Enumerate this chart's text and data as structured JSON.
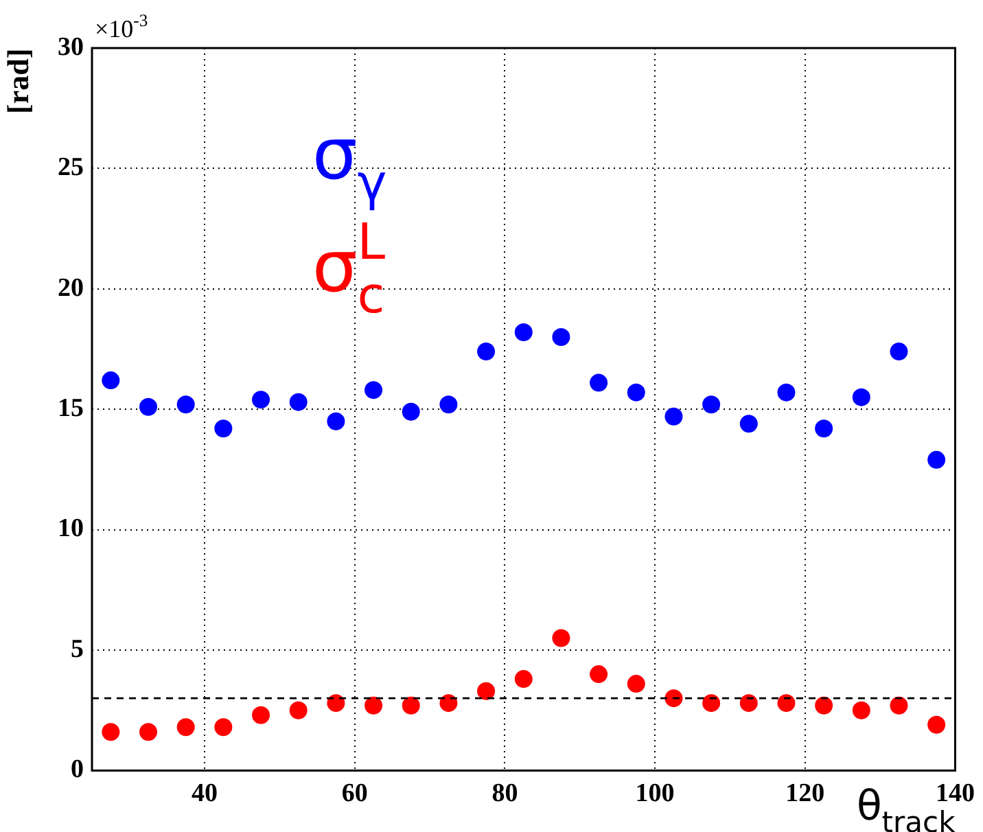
{
  "chart_data": {
    "type": "scatter",
    "xlabel": "θ$_{track}$",
    "ylabel": "[rad]",
    "annotations": [
      "×10$^{-3}$"
    ],
    "x": [
      27.5,
      32.5,
      37.5,
      42.5,
      47.5,
      52.5,
      57.5,
      62.5,
      67.5,
      72.5,
      77.5,
      82.5,
      87.5,
      92.5,
      97.5,
      102.5,
      107.5,
      112.5,
      117.5,
      122.5,
      127.5,
      132.5,
      137.5
    ],
    "series": [
      {
        "name": "σ$_{γ}$",
        "color": "#0000ff",
        "values": [
          16.2,
          15.1,
          15.2,
          14.2,
          15.4,
          15.3,
          14.5,
          15.8,
          14.9,
          15.2,
          17.4,
          18.2,
          18.0,
          16.1,
          15.7,
          14.7,
          15.2,
          14.4,
          15.7,
          14.2,
          15.5,
          17.4,
          12.9
        ]
      },
      {
        "name": "σ$^{L}$$_{c}$",
        "color": "#ff0000",
        "values": [
          1.6,
          1.6,
          1.8,
          1.8,
          2.3,
          2.5,
          2.8,
          2.7,
          2.7,
          2.8,
          3.3,
          3.8,
          5.5,
          4.0,
          3.6,
          3.0,
          2.8,
          2.8,
          2.8,
          2.7,
          2.5,
          2.7,
          1.9
        ]
      }
    ],
    "xlim": [
      25,
      140
    ],
    "xticks": [
      40,
      60,
      80,
      100,
      120,
      140
    ],
    "ylim": [
      0,
      30
    ],
    "yticks": [
      0,
      5,
      10,
      15,
      20,
      25,
      30
    ],
    "ref_lines": [
      {
        "axis": "y",
        "value": 3,
        "line_style": "dashed"
      }
    ],
    "grid": true,
    "legend": false,
    "marker": "circle"
  }
}
